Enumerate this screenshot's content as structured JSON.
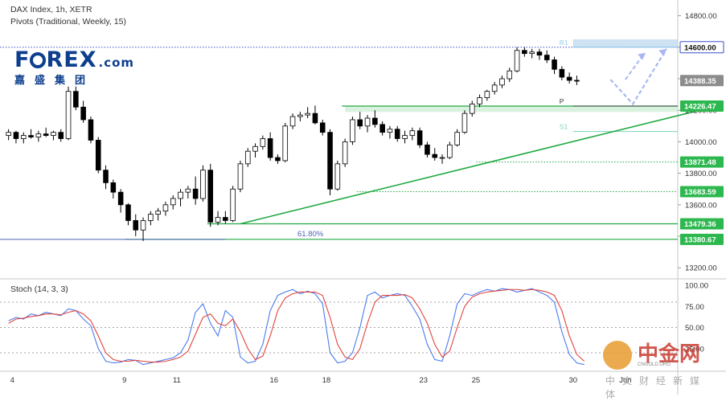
{
  "header": {
    "title": "DAX Index, 1h, XETR",
    "indicator": "Pivots (Traditional, Weekly, 15)"
  },
  "logo": {
    "brand_left": "F",
    "brand_right": "REX",
    "brand_suffix": ".com",
    "brand_cn": "嘉盛集团",
    "color": "#0d3f8e"
  },
  "watermark": {
    "text": "中金网",
    "sub": "CNGOLD.ORG",
    "line2": "中文财经新媒体"
  },
  "chart_data": {
    "type": "candlestick",
    "symbol": "DAX Index",
    "timeframe": "1h",
    "exchange": "XETR",
    "price_axis": {
      "ylim": [
        13140,
        14900
      ],
      "ticks": [
        13200,
        13400,
        13600,
        13800,
        14000,
        14200,
        14400,
        14600,
        14800
      ],
      "tick_labels": [
        "13200.00",
        "13400.00",
        "13600.00",
        "13800.00",
        "14000.00",
        "14200.00",
        "14400.00",
        "14600.00",
        "14800.00"
      ]
    },
    "time_axis": {
      "labels": [
        "4",
        "9",
        "11",
        "16",
        "18",
        "23",
        "25",
        "30",
        "Jun"
      ],
      "label_positions": [
        0.5,
        15.5,
        22.5,
        35.5,
        42.5,
        55.5,
        62.5,
        75.5,
        82.5
      ],
      "bars_total": 90
    },
    "candles": [
      [
        14040,
        14080,
        14010,
        14060
      ],
      [
        14060,
        14070,
        13990,
        14020
      ],
      [
        14020,
        14060,
        13990,
        14040
      ],
      [
        14040,
        14080,
        14020,
        14030
      ],
      [
        14030,
        14070,
        14000,
        14050
      ],
      [
        14050,
        14090,
        14030,
        14040
      ],
      [
        14040,
        14070,
        14010,
        14060
      ],
      [
        14060,
        14080,
        14000,
        14020
      ],
      [
        14020,
        14350,
        14010,
        14320
      ],
      [
        14320,
        14350,
        14200,
        14220
      ],
      [
        14220,
        14260,
        14120,
        14140
      ],
      [
        14140,
        14160,
        13990,
        14010
      ],
      [
        14010,
        14030,
        13800,
        13820
      ],
      [
        13820,
        13850,
        13700,
        13740
      ],
      [
        13740,
        13760,
        13640,
        13680
      ],
      [
        13680,
        13700,
        13550,
        13600
      ],
      [
        13600,
        13610,
        13470,
        13500
      ],
      [
        13500,
        13540,
        13400,
        13440
      ],
      [
        13440,
        13520,
        13370,
        13500
      ],
      [
        13500,
        13560,
        13470,
        13540
      ],
      [
        13540,
        13580,
        13500,
        13560
      ],
      [
        13560,
        13620,
        13530,
        13600
      ],
      [
        13600,
        13660,
        13570,
        13640
      ],
      [
        13640,
        13700,
        13590,
        13680
      ],
      [
        13680,
        13720,
        13640,
        13700
      ],
      [
        13700,
        13780,
        13600,
        13640
      ],
      [
        13640,
        13850,
        13620,
        13820
      ],
      [
        13820,
        13860,
        13460,
        13490
      ],
      [
        13490,
        13560,
        13470,
        13520
      ],
      [
        13520,
        13560,
        13480,
        13500
      ],
      [
        13500,
        13720,
        13490,
        13700
      ],
      [
        13700,
        13880,
        13680,
        13860
      ],
      [
        13860,
        13960,
        13840,
        13940
      ],
      [
        13940,
        13990,
        13900,
        13970
      ],
      [
        13970,
        14040,
        13950,
        14020
      ],
      [
        14020,
        14060,
        13880,
        13900
      ],
      [
        13900,
        13920,
        13860,
        13880
      ],
      [
        13880,
        14120,
        13870,
        14100
      ],
      [
        14100,
        14180,
        14080,
        14160
      ],
      [
        14160,
        14190,
        14130,
        14170
      ],
      [
        14170,
        14220,
        14150,
        14180
      ],
      [
        14180,
        14230,
        14110,
        14120
      ],
      [
        14120,
        14140,
        14040,
        14060
      ],
      [
        14060,
        14080,
        13660,
        13700
      ],
      [
        13700,
        13880,
        13690,
        13860
      ],
      [
        13860,
        14020,
        13840,
        14000
      ],
      [
        14000,
        14160,
        13980,
        14140
      ],
      [
        14140,
        14190,
        14080,
        14100
      ],
      [
        14100,
        14170,
        14060,
        14150
      ],
      [
        14150,
        14200,
        14090,
        14110
      ],
      [
        14110,
        14130,
        14040,
        14060
      ],
      [
        14060,
        14100,
        14020,
        14080
      ],
      [
        14080,
        14100,
        14000,
        14020
      ],
      [
        14020,
        14070,
        13990,
        14040
      ],
      [
        14040,
        14090,
        14010,
        14070
      ],
      [
        14070,
        14090,
        13960,
        13980
      ],
      [
        13980,
        14000,
        13900,
        13920
      ],
      [
        13920,
        13960,
        13880,
        13900
      ],
      [
        13900,
        13920,
        13860,
        13900
      ],
      [
        13900,
        14000,
        13890,
        13980
      ],
      [
        13980,
        14080,
        13970,
        14060
      ],
      [
        14060,
        14200,
        14050,
        14180
      ],
      [
        14180,
        14260,
        14160,
        14240
      ],
      [
        14240,
        14300,
        14220,
        14280
      ],
      [
        14280,
        14330,
        14260,
        14320
      ],
      [
        14320,
        14380,
        14300,
        14360
      ],
      [
        14360,
        14420,
        14340,
        14400
      ],
      [
        14400,
        14470,
        14380,
        14450
      ],
      [
        14450,
        14600,
        14440,
        14580
      ],
      [
        14580,
        14600,
        14540,
        14560
      ],
      [
        14560,
        14590,
        14530,
        14570
      ],
      [
        14570,
        14590,
        14520,
        14550
      ],
      [
        14550,
        14580,
        14500,
        14520
      ],
      [
        14520,
        14540,
        14430,
        14460
      ],
      [
        14460,
        14480,
        14390,
        14410
      ],
      [
        14410,
        14440,
        14370,
        14390
      ],
      [
        14390,
        14420,
        14360,
        14388
      ]
    ],
    "candle_colors": {
      "up": "#ffffff",
      "down": "#000000",
      "outline": "#000000"
    },
    "pivots": [
      {
        "label": "R1",
        "value": 14600,
        "color": "#8ecae6"
      },
      {
        "label": "P",
        "value": 14226.47,
        "color": "#444444"
      },
      {
        "label": "S1",
        "value": 14065,
        "color": "#7fd3c0"
      }
    ],
    "levels": [
      {
        "value": 14600.0,
        "label": "14600.00",
        "color": "#3a4ed0",
        "style": "dotted",
        "badge_bg": "#ffffff",
        "badge_fg": "#111111",
        "badge_border": "#3a4ed0"
      },
      {
        "value": 14388.35,
        "label": "14388.35",
        "color": "#777777",
        "style": "none",
        "badge_bg": "#8c8c8c",
        "badge_fg": "#ffffff"
      },
      {
        "value": 14226.47,
        "label": "14226.47",
        "color": "#22aa44",
        "style": "solid",
        "badge_bg": "#2db84f",
        "badge_fg": "#ffffff"
      },
      {
        "value": 13871.48,
        "label": "13871.48",
        "color": "#22aa44",
        "style": "dotted",
        "badge_bg": "#2db84f",
        "badge_fg": "#ffffff"
      },
      {
        "value": 13683.59,
        "label": "13683.59",
        "color": "#22aa44",
        "style": "dotted",
        "badge_bg": "#2db84f",
        "badge_fg": "#ffffff"
      },
      {
        "value": 13479.36,
        "label": "13479.36",
        "color": "#22aa44",
        "style": "solid",
        "badge_bg": "#2db84f",
        "badge_fg": "#ffffff"
      },
      {
        "value": 13380.67,
        "label": "13380.67",
        "color": "#22aa44",
        "style": "solid",
        "badge_bg": "#2db84f",
        "badge_fg": "#ffffff"
      }
    ],
    "fib": {
      "label": "61.80%",
      "value": 13380.67,
      "color": "#4a63b8"
    },
    "trendline": {
      "from": [
        31.0,
        13479.36
      ],
      "to": [
        92.0,
        14195
      ],
      "color": "#22aa44"
    },
    "zones": [
      {
        "from_price": 14600,
        "to_price": 14650,
        "color": "#b9d6ef"
      },
      {
        "from_price": 14226.47,
        "to_price": 14220,
        "color": "#c9ecd1"
      }
    ],
    "projection": {
      "path": [
        [
          80.5,
          14395
        ],
        [
          83.5,
          14240
        ],
        [
          88.0,
          14590
        ]
      ],
      "aux": [
        [
          82.5,
          14395
        ],
        [
          85.0,
          14560
        ]
      ],
      "color": "#a9b8f0"
    },
    "stochastic": {
      "title": "Stoch (14, 3, 3)",
      "ylim": [
        0,
        100
      ],
      "ticks": [
        25,
        50,
        75,
        100
      ],
      "tick_labels": [
        "25.00",
        "50.00",
        "75.00",
        "100.00"
      ],
      "bands": [
        20,
        50,
        80
      ],
      "k": [
        58,
        62,
        60,
        66,
        64,
        68,
        66,
        64,
        72,
        70,
        60,
        52,
        25,
        10,
        8,
        9,
        12,
        11,
        6,
        8,
        10,
        12,
        14,
        20,
        35,
        68,
        78,
        55,
        40,
        70,
        62,
        15,
        8,
        10,
        30,
        70,
        88,
        92,
        95,
        90,
        93,
        90,
        78,
        20,
        8,
        10,
        20,
        50,
        88,
        92,
        85,
        88,
        90,
        88,
        75,
        60,
        30,
        12,
        10,
        40,
        78,
        90,
        88,
        92,
        95,
        93,
        96,
        95,
        92,
        94,
        96,
        92,
        88,
        80,
        45,
        18,
        8,
        6
      ],
      "d": [
        55,
        60,
        61,
        63,
        64,
        66,
        66,
        65,
        68,
        70,
        66,
        58,
        40,
        20,
        12,
        10,
        10,
        11,
        10,
        9,
        9,
        10,
        12,
        15,
        22,
        42,
        62,
        66,
        55,
        52,
        60,
        45,
        25,
        12,
        16,
        40,
        70,
        85,
        90,
        92,
        92,
        92,
        88,
        62,
        30,
        15,
        12,
        25,
        55,
        80,
        88,
        88,
        88,
        89,
        85,
        72,
        55,
        30,
        15,
        22,
        50,
        75,
        86,
        90,
        92,
        93,
        94,
        95,
        95,
        94,
        95,
        94,
        92,
        88,
        70,
        40,
        18,
        10
      ],
      "k_color": "#4a7bef",
      "d_color": "#e0443e"
    }
  }
}
